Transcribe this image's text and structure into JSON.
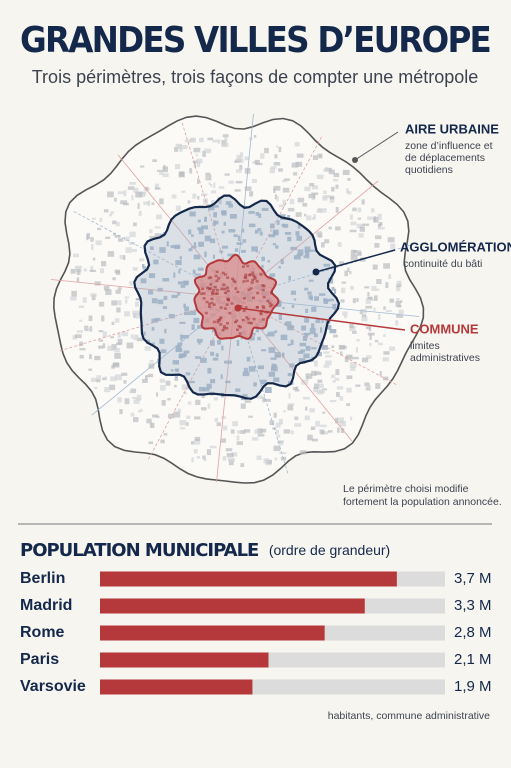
{
  "title": "GRANDES VILLES D’EUROPE",
  "subtitle": "Trois périmètres, trois façons de compter une métropole",
  "map": {
    "aire_urbaine": {
      "label": "AIRE URBAINE",
      "description": [
        "zone d’influence et",
        "de déplacements",
        "quotidiens"
      ]
    },
    "agglomeration": {
      "label": "AGGLOMÉRATION",
      "description": [
        "continuité du bâti"
      ]
    },
    "commune": {
      "label": "COMMUNE",
      "description": [
        "limites",
        "administratives"
      ]
    },
    "note": [
      "Le périmètre choisi modifie",
      "fortement la population annoncée."
    ]
  },
  "chart_data": {
    "type": "bar",
    "orientation": "horizontal",
    "title": "POPULATION MUNICIPALE",
    "subtitle": "(ordre de grandeur)",
    "categories": [
      "Berlin",
      "Madrid",
      "Rome",
      "Paris",
      "Varsovie"
    ],
    "values": [
      3.7,
      3.3,
      2.8,
      2.1,
      1.9
    ],
    "value_labels": [
      "3,7 M",
      "3,3 M",
      "2,8 M",
      "2,1 M",
      "1,9 M"
    ],
    "color": "#b5383b",
    "track_color": "#dcdcdc",
    "xlim": [
      0,
      4.3
    ],
    "footnote": "habitants, commune administrative"
  }
}
